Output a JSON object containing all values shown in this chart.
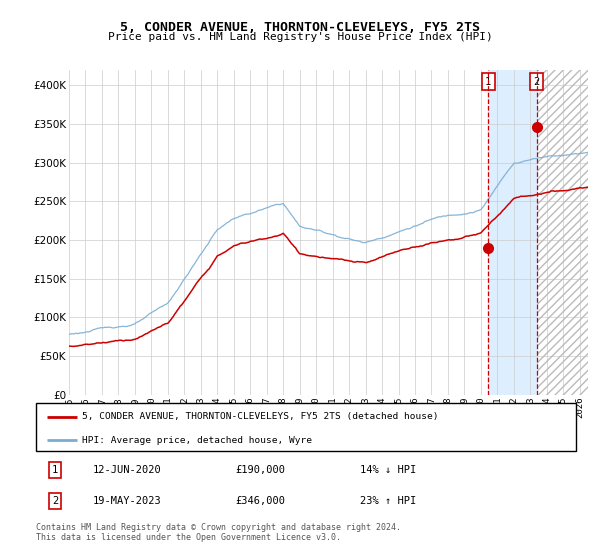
{
  "title": "5, CONDER AVENUE, THORNTON-CLEVELEYS, FY5 2TS",
  "subtitle": "Price paid vs. HM Land Registry's House Price Index (HPI)",
  "legend_line1": "5, CONDER AVENUE, THORNTON-CLEVELEYS, FY5 2TS (detached house)",
  "legend_line2": "HPI: Average price, detached house, Wyre",
  "footnote": "Contains HM Land Registry data © Crown copyright and database right 2024.\nThis data is licensed under the Open Government Licence v3.0.",
  "transaction1_date": "12-JUN-2020",
  "transaction1_price": "£190,000",
  "transaction1_note": "14% ↓ HPI",
  "transaction2_date": "19-MAY-2023",
  "transaction2_price": "£346,000",
  "transaction2_note": "23% ↑ HPI",
  "hpi_color": "#7aadd4",
  "price_color": "#cc0000",
  "background_color": "#ffffff",
  "grid_color": "#cccccc",
  "highlight_color": "#ddeeff",
  "ylim": [
    0,
    420000
  ],
  "xlim_start": 1995.0,
  "xlim_end": 2026.5,
  "transaction1_x": 2020.45,
  "transaction2_x": 2023.38,
  "transaction1_y": 190000,
  "transaction2_y": 346000
}
